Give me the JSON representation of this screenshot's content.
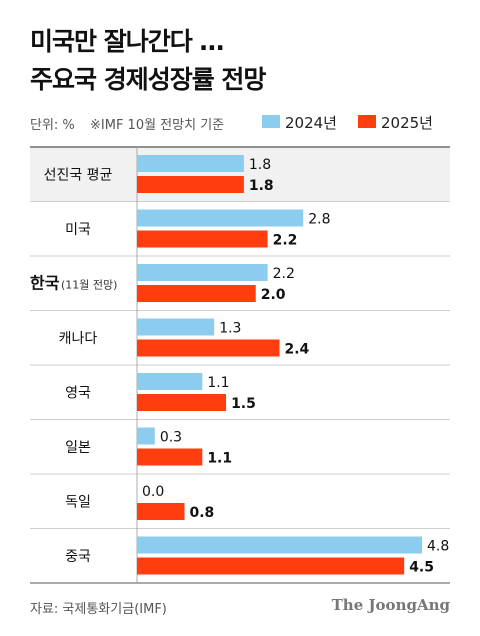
{
  "title_line1": "미국만 잘나간다 …",
  "title_line2": "주요국 경제성장률 전망",
  "unit": "단위: %",
  "note": "※IMF 10월 전망치 기준",
  "source": "자료: 국제통화기금(IMF)",
  "brand": "The JoongAng",
  "colors": {
    "s2024": "#8cccee",
    "s2025": "#ff3d0e",
    "highlight_row": "#f1f1f1"
  },
  "chart_data": {
    "type": "bar",
    "orientation": "horizontal",
    "categories": [
      "선진국 평균",
      "미국",
      "한국",
      "캐나다",
      "영국",
      "일본",
      "독일",
      "중국"
    ],
    "category_notes": [
      "",
      "",
      "(11월 전망)",
      "",
      "",
      "",
      "",
      ""
    ],
    "series": [
      {
        "name": "2024년",
        "values": [
          1.8,
          2.8,
          2.2,
          1.3,
          1.1,
          0.3,
          0.0,
          4.8
        ],
        "labels": [
          "1.8",
          "2.8",
          "2.2",
          "1.3",
          "1.1",
          "0.3",
          "0.0",
          "4.8"
        ]
      },
      {
        "name": "2025년",
        "values": [
          1.8,
          2.2,
          2.0,
          2.4,
          1.5,
          1.1,
          0.8,
          4.5
        ],
        "labels": [
          "1.8",
          "2.2",
          "2.0",
          "2.4",
          "1.5",
          "1.1",
          "0.8",
          "4.5"
        ]
      }
    ],
    "xlim": [
      0,
      4.8
    ],
    "legend_position": "top-right",
    "grid": false
  }
}
